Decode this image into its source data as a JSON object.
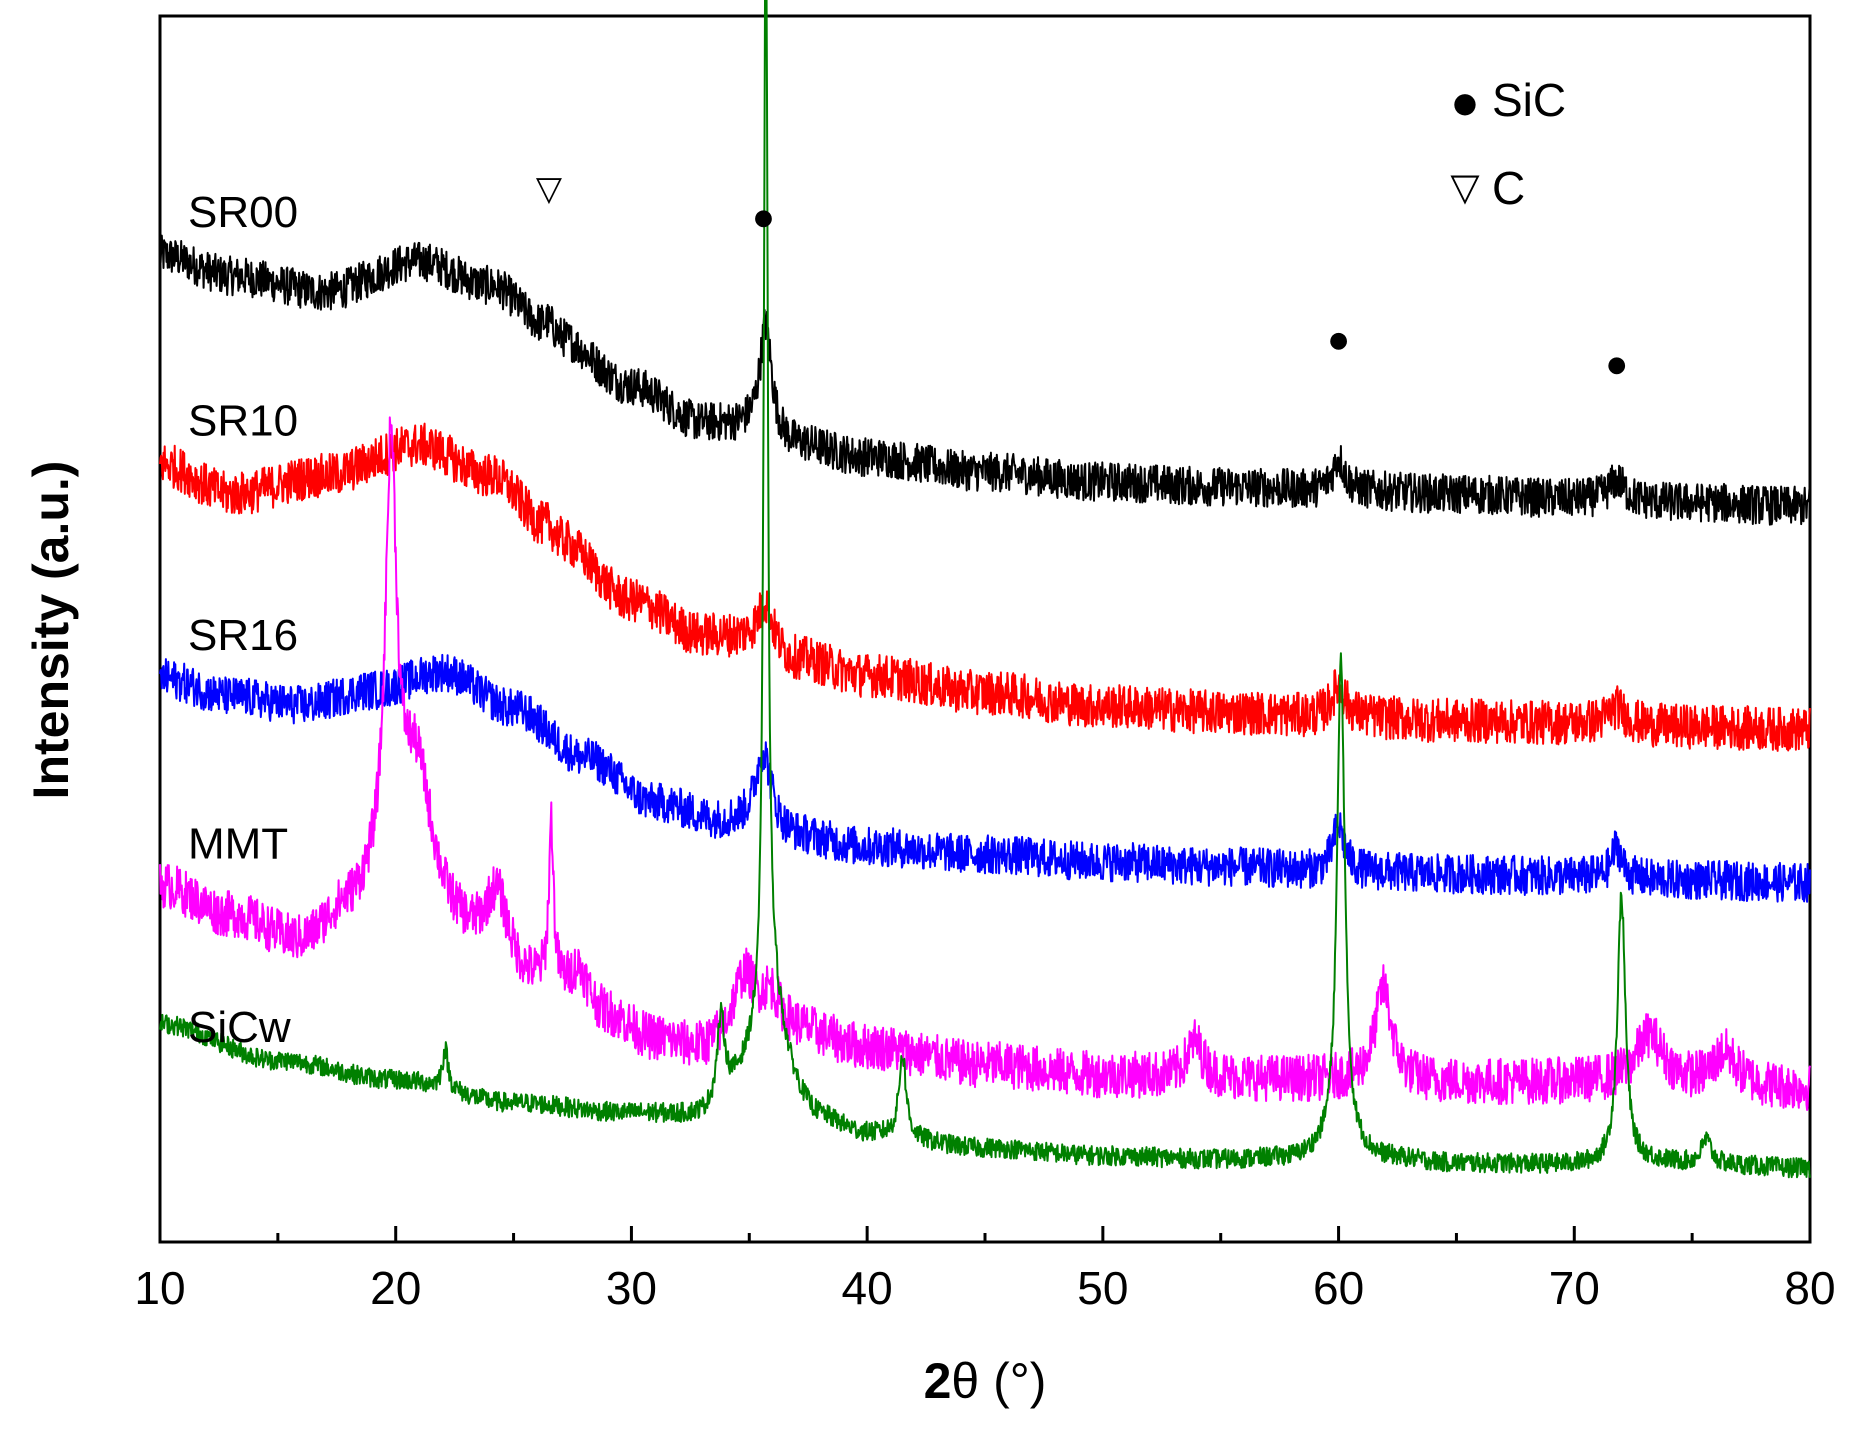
{
  "chart_data": {
    "type": "line",
    "title": "",
    "xlabel_bold": "2",
    "xlabel_rest": "θ (°)",
    "ylabel": "Intensity (a.u.)",
    "xlim": [
      10,
      80
    ],
    "ylim": [
      0,
      100
    ],
    "x_ticks": [
      10,
      20,
      30,
      40,
      50,
      60,
      70,
      80
    ],
    "y_ticks_labeled": false,
    "grid": false,
    "legend_position": "top-right",
    "legend": [
      {
        "marker": "●",
        "label": "SiC"
      },
      {
        "marker": "▽",
        "label": "C"
      }
    ],
    "series": [
      {
        "name": "SR00",
        "color": "#000000",
        "noise": 1.6,
        "baseline": [
          [
            10,
            80.5
          ],
          [
            13,
            78.8
          ],
          [
            17,
            77.5
          ],
          [
            21,
            80.0
          ],
          [
            24,
            78.0
          ],
          [
            27,
            73.5
          ],
          [
            30,
            69.8
          ],
          [
            33,
            66.8
          ],
          [
            35,
            66.5
          ],
          [
            37,
            65.0
          ],
          [
            40,
            64.0
          ],
          [
            45,
            62.8
          ],
          [
            50,
            62.0
          ],
          [
            55,
            61.6
          ],
          [
            60,
            61.3
          ],
          [
            65,
            61.0
          ],
          [
            70,
            60.6
          ],
          [
            75,
            60.3
          ],
          [
            80,
            60.0
          ]
        ],
        "peaks": [
          [
            26.5,
            1.2,
            0.35
          ],
          [
            35.7,
            8.8,
            0.3
          ],
          [
            60.0,
            2.6,
            0.3
          ],
          [
            71.8,
            1.6,
            0.4
          ]
        ]
      },
      {
        "name": "SR10",
        "color": "#ff0000",
        "noise": 1.8,
        "baseline": [
          [
            10,
            63.5
          ],
          [
            13,
            61.0
          ],
          [
            17,
            62.5
          ],
          [
            21,
            65.0
          ],
          [
            24,
            62.5
          ],
          [
            27,
            57.0
          ],
          [
            30,
            52.3
          ],
          [
            33,
            49.5
          ],
          [
            35,
            49.3
          ],
          [
            37,
            47.5
          ],
          [
            40,
            46.2
          ],
          [
            45,
            44.8
          ],
          [
            50,
            43.7
          ],
          [
            55,
            43.2
          ],
          [
            60,
            42.8
          ],
          [
            65,
            42.5
          ],
          [
            70,
            42.3
          ],
          [
            75,
            42.0
          ],
          [
            80,
            41.8
          ]
        ],
        "peaks": [
          [
            26.5,
            1.1,
            0.35
          ],
          [
            35.7,
            3.4,
            0.35
          ],
          [
            60.0,
            2.6,
            0.35
          ],
          [
            71.8,
            1.4,
            0.45
          ]
        ]
      },
      {
        "name": "SR16",
        "color": "#0000ff",
        "noise": 1.6,
        "baseline": [
          [
            10,
            46.0
          ],
          [
            13,
            44.5
          ],
          [
            16,
            43.8
          ],
          [
            19,
            45.0
          ],
          [
            22,
            46.5
          ],
          [
            25,
            43.5
          ],
          [
            28,
            39.5
          ],
          [
            31,
            35.8
          ],
          [
            34,
            34.2
          ],
          [
            37,
            33.0
          ],
          [
            40,
            32.2
          ],
          [
            45,
            31.6
          ],
          [
            50,
            31.0
          ],
          [
            55,
            30.6
          ],
          [
            60,
            30.2
          ],
          [
            65,
            30.0
          ],
          [
            70,
            29.8
          ],
          [
            75,
            29.5
          ],
          [
            80,
            29.3
          ]
        ],
        "peaks": [
          [
            35.6,
            6.5,
            0.42
          ],
          [
            60.0,
            3.8,
            0.3
          ],
          [
            71.8,
            2.6,
            0.25
          ]
        ]
      },
      {
        "name": "MMT",
        "color": "#ff00ff",
        "noise": 1.9,
        "baseline": [
          [
            10,
            29.0
          ],
          [
            13,
            26.5
          ],
          [
            16,
            24.2
          ],
          [
            18,
            26.5
          ],
          [
            19.5,
            27.5
          ],
          [
            22,
            24.0
          ],
          [
            26,
            20.5
          ],
          [
            29,
            18.0
          ],
          [
            31,
            16.3
          ],
          [
            33,
            15.5
          ],
          [
            35,
            16.5
          ],
          [
            37,
            17.0
          ],
          [
            40,
            15.8
          ],
          [
            45,
            14.4
          ],
          [
            50,
            13.6
          ],
          [
            55,
            13.3
          ],
          [
            60,
            13.2
          ],
          [
            65,
            13.0
          ],
          [
            70,
            13.0
          ],
          [
            75,
            12.8
          ],
          [
            80,
            12.5
          ]
        ],
        "peaks": [
          [
            19.8,
            34.0,
            0.28
          ],
          [
            20.9,
            13.0,
            0.9
          ],
          [
            24.3,
            6.0,
            0.6
          ],
          [
            26.6,
            13.0,
            0.12
          ],
          [
            27.8,
            3.0,
            0.5
          ],
          [
            34.8,
            5.0,
            0.6
          ],
          [
            35.9,
            3.0,
            0.5
          ],
          [
            53.9,
            3.0,
            0.4
          ],
          [
            61.9,
            7.6,
            0.42
          ],
          [
            73.2,
            4.0,
            0.7
          ],
          [
            76.4,
            2.6,
            0.6
          ]
        ]
      },
      {
        "name": "SiCw",
        "color": "#008000",
        "noise": 0.8,
        "baseline": [
          [
            10,
            17.8
          ],
          [
            15,
            14.8
          ],
          [
            20,
            13.2
          ],
          [
            25,
            11.3
          ],
          [
            30,
            10.4
          ],
          [
            33,
            10.0
          ],
          [
            35,
            12.0
          ],
          [
            36,
            11.5
          ],
          [
            38,
            9.5
          ],
          [
            40,
            8.6
          ],
          [
            45,
            7.6
          ],
          [
            50,
            7.0
          ],
          [
            55,
            6.7
          ],
          [
            58,
            6.8
          ],
          [
            60,
            7.5
          ],
          [
            62,
            6.8
          ],
          [
            65,
            6.4
          ],
          [
            70,
            6.3
          ],
          [
            73,
            6.6
          ],
          [
            76,
            6.3
          ],
          [
            80,
            6.0
          ]
        ],
        "peaks": [
          [
            22.1,
            3.2,
            0.15
          ],
          [
            33.8,
            6.8,
            0.2
          ],
          [
            35.7,
            91.0,
            0.1
          ],
          [
            35.9,
            8.5,
            0.75
          ],
          [
            41.5,
            6.8,
            0.18
          ],
          [
            60.1,
            40.0,
            0.2
          ],
          [
            72.0,
            21.8,
            0.2
          ],
          [
            75.6,
            2.0,
            0.25
          ]
        ]
      }
    ],
    "peak_markers": [
      {
        "symbol": "▽",
        "x": 26.5,
        "y": 85.0,
        "phase": "C"
      },
      {
        "symbol": "●",
        "x": 35.6,
        "y": 83.0,
        "phase": "SiC"
      },
      {
        "symbol": "●",
        "x": 60.0,
        "y": 73.0,
        "phase": "SiC"
      },
      {
        "symbol": "●",
        "x": 71.8,
        "y": 71.0,
        "phase": "SiC"
      }
    ]
  }
}
